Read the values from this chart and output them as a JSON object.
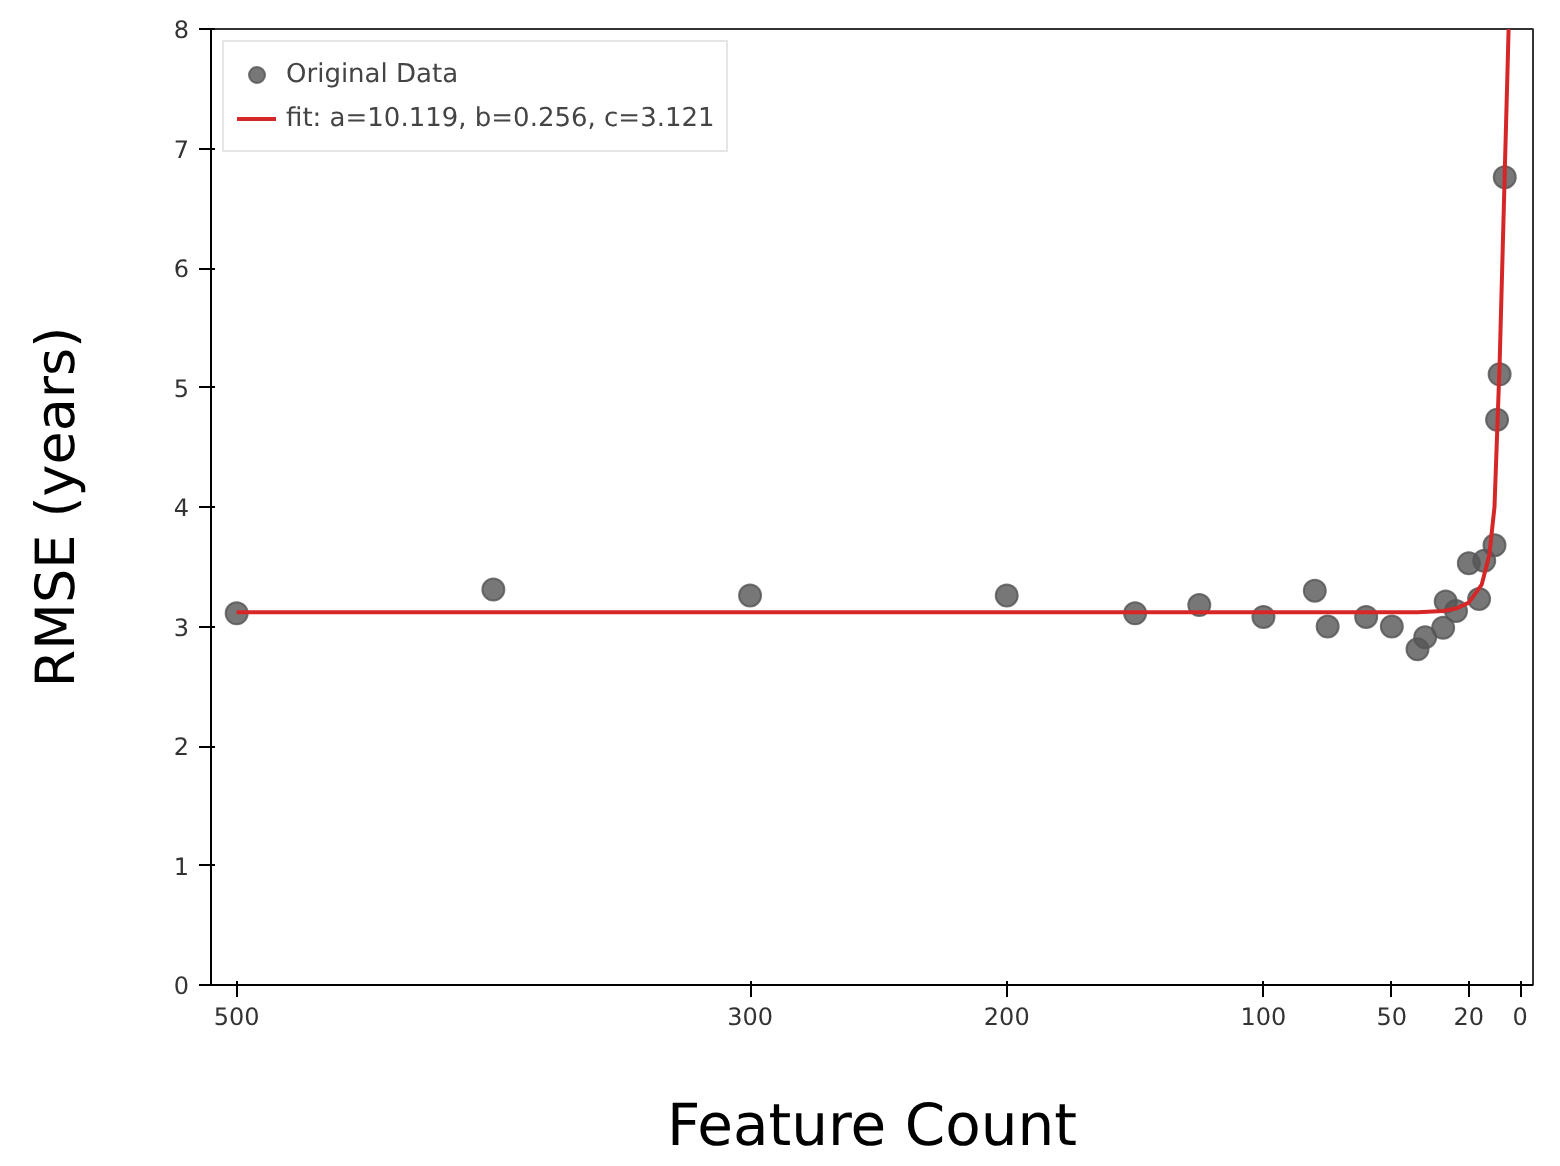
{
  "chart_data": {
    "type": "scatter",
    "xlabel": "Feature Count",
    "ylabel": "RMSE (years)",
    "xlim": [
      510,
      -5
    ],
    "xticks": [
      500,
      300,
      200,
      100,
      50,
      20,
      0
    ],
    "ylim": [
      0,
      8
    ],
    "yticks": [
      0,
      1,
      2,
      3,
      4,
      5,
      6,
      7,
      8
    ],
    "grid": false,
    "legend": "top left",
    "series": [
      {
        "name": "Original Data",
        "marker": "circle",
        "color": "#555555",
        "x": [
          500,
          400,
          300,
          200,
          150,
          125,
          100,
          80,
          75,
          60,
          50,
          40,
          37,
          30,
          29,
          25,
          20,
          16,
          14,
          10,
          9,
          8,
          6
        ],
        "values": [
          3.11,
          3.31,
          3.26,
          3.26,
          3.11,
          3.18,
          3.08,
          3.3,
          3.0,
          3.08,
          3.0,
          2.81,
          2.91,
          2.99,
          3.21,
          3.13,
          3.53,
          3.23,
          3.55,
          3.68,
          4.73,
          5.11,
          6.76
        ]
      },
      {
        "name": "fit: a=10.119, b=0.256, c=3.121",
        "type": "line",
        "color": "#d62728",
        "line_style": "solid",
        "x": [
          500,
          100,
          40,
          30,
          25,
          20,
          15,
          12,
          10,
          9,
          8,
          7,
          6,
          5,
          4.5
        ],
        "values": [
          3.12,
          3.12,
          3.12,
          3.13,
          3.15,
          3.2,
          3.35,
          3.6,
          4.0,
          4.6,
          5.2,
          6.0,
          6.8,
          7.6,
          8.0
        ]
      }
    ]
  }
}
